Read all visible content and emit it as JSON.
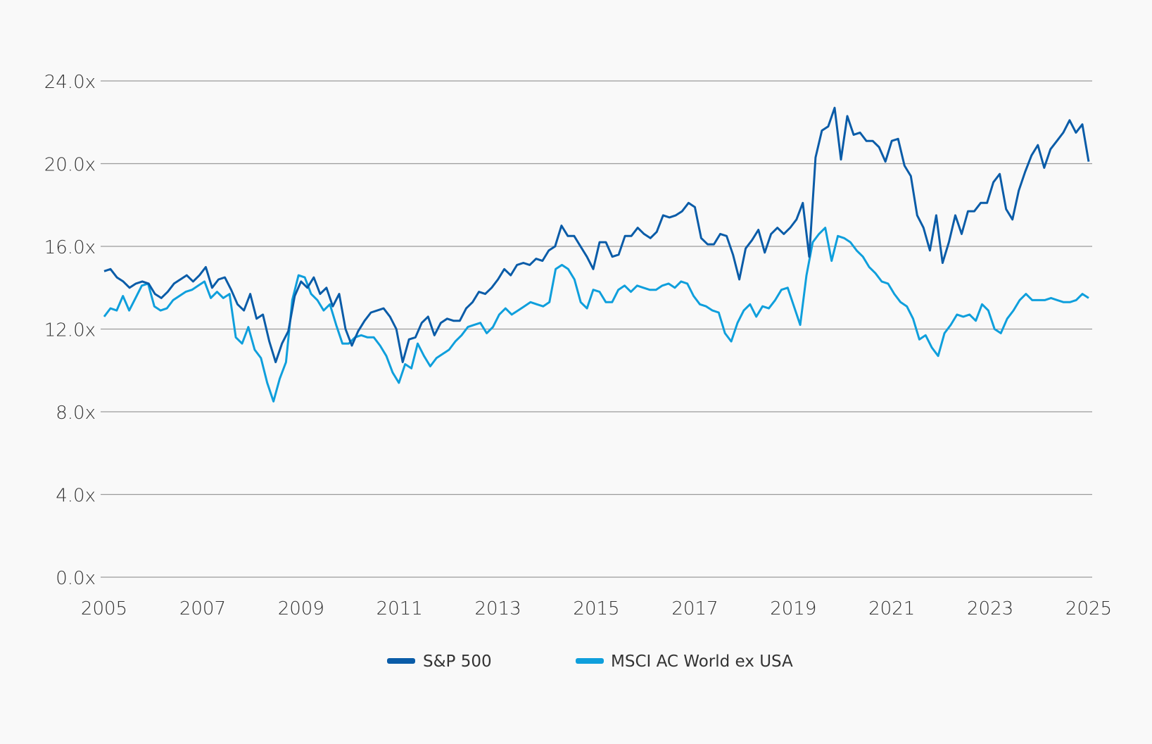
{
  "chart_data": {
    "type": "line",
    "title": "",
    "xlabel": "",
    "ylabel": "",
    "ylim": [
      0,
      24
    ],
    "xlim": [
      2005,
      2025
    ],
    "y_ticks": [
      "0.0x",
      "4.0x",
      "8.0x",
      "12.0x",
      "16.0x",
      "20.0x",
      "24.0x"
    ],
    "y_tick_values": [
      0,
      4,
      8,
      12,
      16,
      20,
      24
    ],
    "x_ticks": [
      "2005",
      "2007",
      "2009",
      "2011",
      "2013",
      "2015",
      "2017",
      "2019",
      "2021",
      "2023",
      "2025"
    ],
    "x_tick_values": [
      2005,
      2007,
      2009,
      2011,
      2013,
      2015,
      2017,
      2019,
      2021,
      2023,
      2025
    ],
    "grid": true,
    "legend_position": "bottom-center",
    "x_start": 2005.0,
    "x_step_months": 2,
    "series": [
      {
        "name": "S&P 500",
        "color": "#0a5ca8",
        "values": [
          14.8,
          14.9,
          14.5,
          14.3,
          14.0,
          14.2,
          14.3,
          14.2,
          13.7,
          13.5,
          13.8,
          14.2,
          14.4,
          14.6,
          14.3,
          14.6,
          15.0,
          14.0,
          14.4,
          14.5,
          13.9,
          13.2,
          12.9,
          13.7,
          12.5,
          12.7,
          11.4,
          10.4,
          11.3,
          11.9,
          13.6,
          14.3,
          14.0,
          14.5,
          13.7,
          14.0,
          13.1,
          13.7,
          12.0,
          11.2,
          11.9,
          12.4,
          12.8,
          12.9,
          13.0,
          12.6,
          12.0,
          10.4,
          11.5,
          11.6,
          12.3,
          12.6,
          11.7,
          12.3,
          12.5,
          12.4,
          12.4,
          13.0,
          13.3,
          13.8,
          13.7,
          14.0,
          14.4,
          14.9,
          14.6,
          15.1,
          15.2,
          15.1,
          15.4,
          15.3,
          15.8,
          16.0,
          17.0,
          16.5,
          16.5,
          16.0,
          15.5,
          14.9,
          16.2,
          16.2,
          15.5,
          15.6,
          16.5,
          16.5,
          16.9,
          16.6,
          16.4,
          16.7,
          17.5,
          17.4,
          17.5,
          17.7,
          18.1,
          17.9,
          16.4,
          16.1,
          16.1,
          16.6,
          16.5,
          15.6,
          14.4,
          15.9,
          16.3,
          16.8,
          15.7,
          16.6,
          16.9,
          16.6,
          16.9,
          17.3,
          18.1,
          15.5,
          20.3,
          21.6,
          21.8,
          22.7,
          20.2,
          22.3,
          21.4,
          21.5,
          21.1,
          21.1,
          20.8,
          20.1,
          21.1,
          21.2,
          19.9,
          19.4,
          17.5,
          16.9,
          15.8,
          17.5,
          15.2,
          16.2,
          17.5,
          16.6,
          17.7,
          17.7,
          18.1,
          18.1,
          19.1,
          19.5,
          17.8,
          17.3,
          18.7,
          19.6,
          20.4,
          20.9,
          19.8,
          20.7,
          21.1,
          21.5,
          22.1,
          21.5,
          21.9,
          20.1
        ]
      },
      {
        "name": "MSCI AC World ex USA",
        "color": "#0f9fdc",
        "values": [
          12.6,
          13.0,
          12.9,
          13.6,
          12.9,
          13.5,
          14.1,
          14.2,
          13.1,
          12.9,
          13.0,
          13.4,
          13.6,
          13.8,
          13.9,
          14.1,
          14.3,
          13.5,
          13.8,
          13.5,
          13.7,
          11.6,
          11.3,
          12.1,
          11.0,
          10.6,
          9.4,
          8.5,
          9.6,
          10.4,
          13.4,
          14.6,
          14.5,
          13.7,
          13.4,
          12.9,
          13.2,
          12.2,
          11.3,
          11.3,
          11.6,
          11.7,
          11.6,
          11.6,
          11.2,
          10.7,
          9.9,
          9.4,
          10.3,
          10.1,
          11.3,
          10.7,
          10.2,
          10.6,
          10.8,
          11.0,
          11.4,
          11.7,
          12.1,
          12.2,
          12.3,
          11.8,
          12.1,
          12.7,
          13.0,
          12.7,
          12.9,
          13.1,
          13.3,
          13.2,
          13.1,
          13.3,
          14.9,
          15.1,
          14.9,
          14.4,
          13.3,
          13.0,
          13.9,
          13.8,
          13.3,
          13.3,
          13.9,
          14.1,
          13.8,
          14.1,
          14.0,
          13.9,
          13.9,
          14.1,
          14.2,
          14.0,
          14.3,
          14.2,
          13.6,
          13.2,
          13.1,
          12.9,
          12.8,
          11.8,
          11.4,
          12.3,
          12.9,
          13.2,
          12.6,
          13.1,
          13.0,
          13.4,
          13.9,
          14.0,
          13.1,
          12.2,
          14.6,
          16.2,
          16.6,
          16.9,
          15.3,
          16.5,
          16.4,
          16.2,
          15.8,
          15.5,
          15.0,
          14.7,
          14.3,
          14.2,
          13.7,
          13.3,
          13.1,
          12.5,
          11.5,
          11.7,
          11.1,
          10.7,
          11.8,
          12.2,
          12.7,
          12.6,
          12.7,
          12.4,
          13.2,
          12.9,
          12.0,
          11.8,
          12.5,
          12.9,
          13.4,
          13.7,
          13.4,
          13.4,
          13.4,
          13.5,
          13.4,
          13.3,
          13.3,
          13.4,
          13.7,
          13.5
        ]
      }
    ]
  }
}
